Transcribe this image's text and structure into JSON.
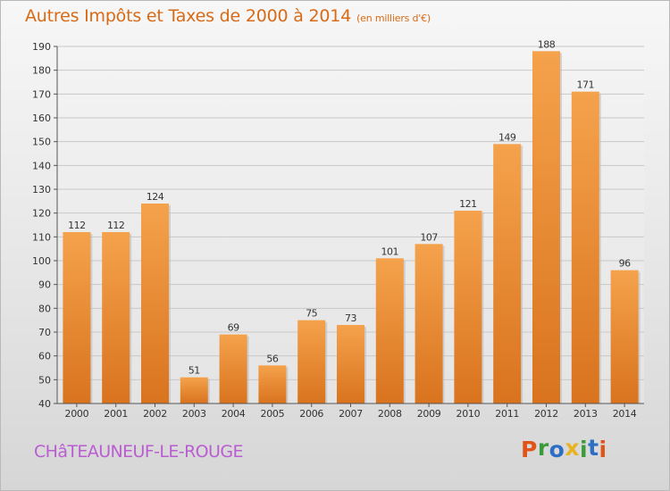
{
  "chart_data": {
    "type": "bar",
    "title": "Autres Impôts et Taxes de 2000 à 2014",
    "subtitle": "(en milliers d'€)",
    "categories": [
      "2000",
      "2001",
      "2002",
      "2003",
      "2004",
      "2005",
      "2006",
      "2007",
      "2008",
      "2009",
      "2010",
      "2011",
      "2012",
      "2013",
      "2014"
    ],
    "values": [
      112,
      112,
      124,
      51,
      69,
      56,
      75,
      73,
      101,
      107,
      121,
      149,
      188,
      171,
      96
    ],
    "ylim": [
      40,
      190
    ],
    "yticks": [
      40,
      50,
      60,
      70,
      80,
      90,
      100,
      110,
      120,
      130,
      140,
      150,
      160,
      170,
      180,
      190
    ],
    "grid": true,
    "bar_color": "#f0902f"
  },
  "footer": {
    "commune": "CHâTEAUNEUF-LE-ROUGE",
    "logo_letters": [
      {
        "ch": "P",
        "color": "#e0541a"
      },
      {
        "ch": "r",
        "color": "#3a9b3a"
      },
      {
        "ch": "o",
        "color": "#2d6fc4"
      },
      {
        "ch": "x",
        "color": "#e8b321"
      },
      {
        "ch": "i",
        "color": "#3a9b3a"
      },
      {
        "ch": "t",
        "color": "#2d6fc4"
      },
      {
        "ch": "i",
        "color": "#e0541a"
      }
    ]
  }
}
